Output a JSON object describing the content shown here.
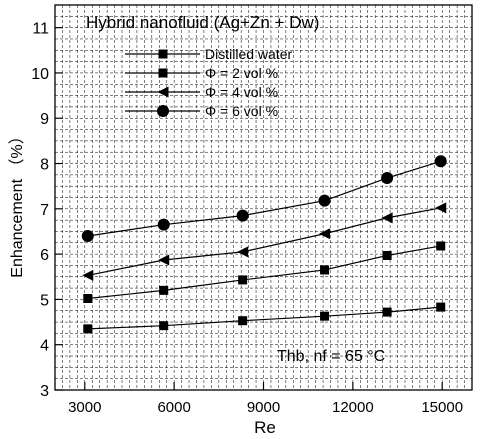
{
  "chart_data": {
    "type": "line",
    "title": "Hybrid nanofluid (Ag+Zn + Dw)",
    "xlabel": "Re",
    "ylabel": "Enhancement （%）",
    "annotation": "Thb, nf = 65 °C",
    "xlim": [
      2000,
      16000
    ],
    "ylim": [
      3,
      11.5
    ],
    "xticks": [
      3000,
      6000,
      9000,
      12000,
      15000
    ],
    "yticks": [
      3,
      4,
      5,
      6,
      7,
      8,
      9,
      10,
      11
    ],
    "grid": true,
    "legend_position": "top-center",
    "series": [
      {
        "name": "Distilled water",
        "marker": "square",
        "x": [
          3100,
          5650,
          8300,
          11050,
          13150,
          14950
        ],
        "y": [
          4.35,
          4.42,
          4.53,
          4.63,
          4.72,
          4.83
        ]
      },
      {
        "name": "Φ = 2 vol %",
        "marker": "square",
        "x": [
          3100,
          5650,
          8300,
          11050,
          13150,
          14950
        ],
        "y": [
          5.02,
          5.2,
          5.43,
          5.65,
          5.97,
          6.18
        ]
      },
      {
        "name": "Φ = 4 vol %",
        "marker": "triangle-left",
        "x": [
          3100,
          5650,
          8300,
          11050,
          13150,
          14950
        ],
        "y": [
          5.53,
          5.87,
          6.05,
          6.45,
          6.8,
          7.02
        ]
      },
      {
        "name": "Φ = 6 vol %",
        "marker": "circle",
        "x": [
          3100,
          5650,
          8300,
          11050,
          13150,
          14950
        ],
        "y": [
          6.4,
          6.65,
          6.85,
          7.18,
          7.68,
          8.05
        ]
      }
    ]
  }
}
